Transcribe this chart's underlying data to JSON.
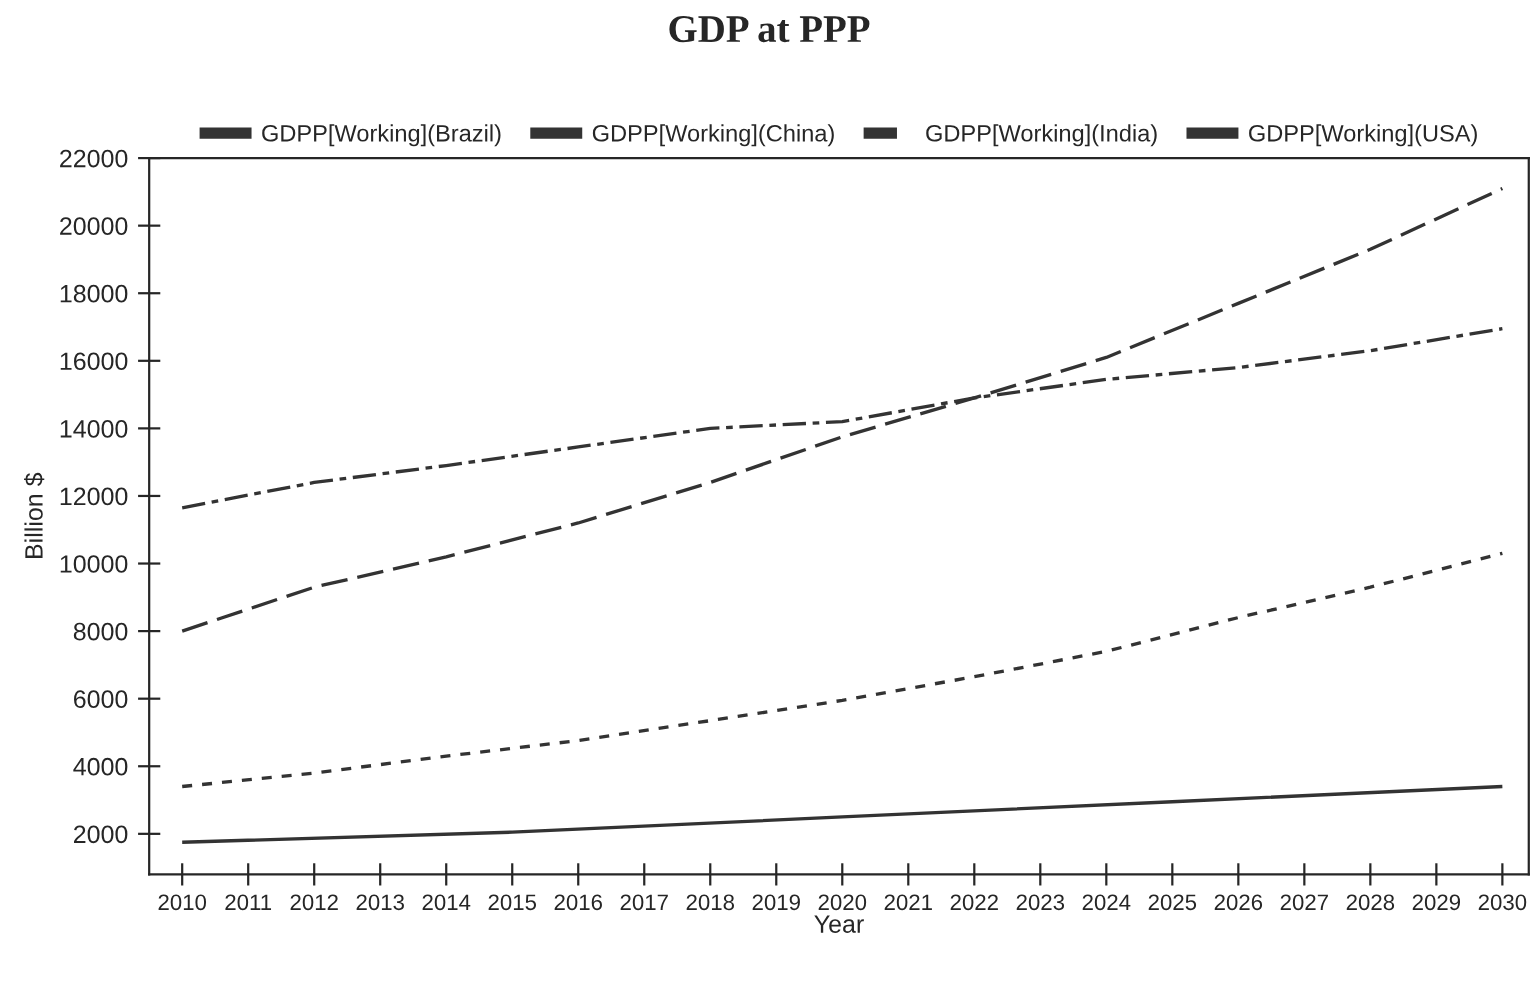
{
  "chart_data": {
    "type": "line",
    "title": "GDP at PPP",
    "xlabel": "Year",
    "ylabel": "Billion $",
    "legend": "top",
    "grid": false,
    "xlim": [
      2009.5,
      2030.4
    ],
    "ylim": [
      800,
      22000
    ],
    "xticks": [
      2010,
      2011,
      2012,
      2013,
      2014,
      2015,
      2016,
      2017,
      2018,
      2019,
      2020,
      2021,
      2022,
      2023,
      2024,
      2025,
      2026,
      2027,
      2028,
      2029,
      2030
    ],
    "yticks": [
      2000,
      4000,
      6000,
      8000,
      10000,
      12000,
      14000,
      16000,
      18000,
      20000,
      22000
    ],
    "series": [
      {
        "name": "GDPP[Working](Brazil)",
        "color": "#333333",
        "line_style": "solid",
        "x": [
          2010,
          2015,
          2020,
          2025,
          2030
        ],
        "values": [
          1750,
          2050,
          2500,
          2950,
          3400
        ]
      },
      {
        "name": "GDPP[Working](China)",
        "color": "#333333",
        "line_style": "dashed",
        "x": [
          2010,
          2012,
          2014,
          2016,
          2018,
          2020,
          2022,
          2024,
          2026,
          2028,
          2030
        ],
        "values": [
          8000,
          9300,
          10200,
          11200,
          12400,
          13750,
          14900,
          16100,
          17700,
          19300,
          21100
        ]
      },
      {
        "name": "GDPP[Working](India)",
        "color": "#333333",
        "line_style": "dotted",
        "x": [
          2010,
          2012,
          2014,
          2016,
          2018,
          2020,
          2022,
          2024,
          2026,
          2028,
          2030
        ],
        "values": [
          3400,
          3800,
          4300,
          4760,
          5350,
          5950,
          6650,
          7400,
          8400,
          9300,
          10300
        ]
      },
      {
        "name": "GDPP[Working](USA)",
        "color": "#333333",
        "line_style": "dashdot",
        "x": [
          2010,
          2012,
          2014,
          2016,
          2018,
          2020,
          2022,
          2024,
          2026,
          2028,
          2030
        ],
        "values": [
          11650,
          12400,
          12900,
          13450,
          14000,
          14200,
          14900,
          15450,
          15800,
          16300,
          16950
        ]
      }
    ]
  }
}
